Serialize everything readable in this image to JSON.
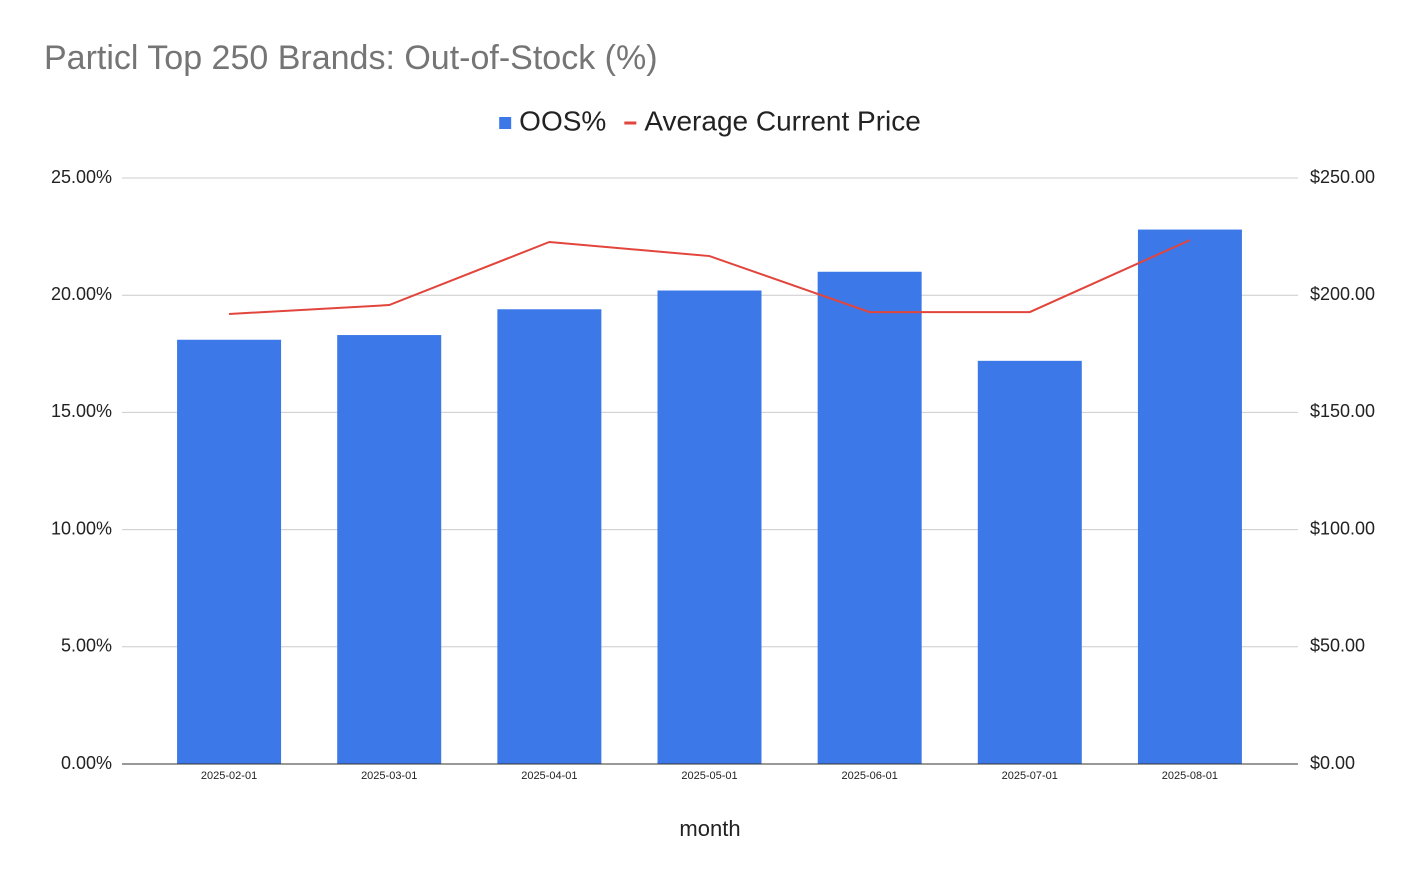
{
  "chart_data": {
    "type": "bar",
    "title": "Particl Top 250 Brands: Out-of-Stock (%)",
    "x_label": "month",
    "categories": [
      "2025-02-01",
      "2025-03-01",
      "2025-04-01",
      "2025-05-01",
      "2025-06-01",
      "2025-07-01",
      "2025-08-01"
    ],
    "series": [
      {
        "name": "OOS%",
        "type": "bar",
        "color": "#3c78e8",
        "values": [
          18.1,
          18.3,
          19.4,
          20.2,
          21.0,
          17.2,
          22.8
        ]
      },
      {
        "name": "Average Current Price",
        "type": "line",
        "axis": "y2",
        "color": "#e2453c",
        "values": [
          192.0,
          195.8,
          222.7,
          216.7,
          192.8,
          192.8,
          223.5
        ]
      }
    ],
    "ylim": [
      0,
      25
    ],
    "yticks": [
      {
        "value": 0,
        "label": "0.00%"
      },
      {
        "value": 5,
        "label": "5.00%"
      },
      {
        "value": 10,
        "label": "10.00%"
      },
      {
        "value": 15,
        "label": "15.00%"
      },
      {
        "value": 20,
        "label": "20.00%"
      },
      {
        "value": 25,
        "label": "25.00%"
      }
    ],
    "y2lim": [
      0,
      250
    ],
    "y2ticks": [
      {
        "value": 0,
        "label": "$0.00"
      },
      {
        "value": 50,
        "label": "$50.00"
      },
      {
        "value": 100,
        "label": "$100.00"
      },
      {
        "value": 150,
        "label": "$150.00"
      },
      {
        "value": 200,
        "label": "$200.00"
      },
      {
        "value": 250,
        "label": "$250.00"
      }
    ],
    "grid": true,
    "legend": "top"
  }
}
